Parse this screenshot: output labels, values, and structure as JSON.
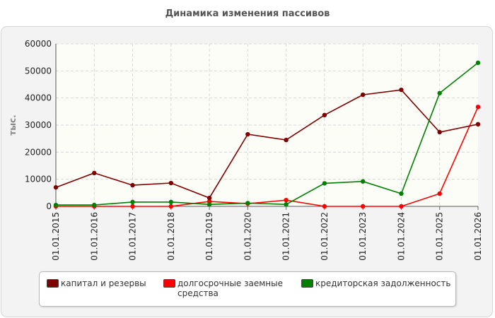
{
  "chart_data": {
    "type": "line",
    "title": "Динамика изменения пассивов",
    "ylabel": "тыс.",
    "xlabel": "",
    "categories": [
      "01.01.2015",
      "01.01.2016",
      "01.01.2017",
      "01.01.2018",
      "01.01.2019",
      "01.01.2020",
      "01.01.2021",
      "01.01.2022",
      "01.01.2023",
      "01.01.2024",
      "01.01.2025",
      "01.01.2026"
    ],
    "y_ticks": [
      "0",
      "10000",
      "20000",
      "30000",
      "40000",
      "50000",
      "60000"
    ],
    "ylim": [
      0,
      60000
    ],
    "grid": true,
    "legend_position": "bottom",
    "series": [
      {
        "name": "капитал и резервы",
        "color": "#800000",
        "values": [
          7000,
          12300,
          7800,
          8600,
          3100,
          26600,
          24500,
          33700,
          41200,
          43000,
          27400,
          30300
        ]
      },
      {
        "name": "долгосрочные заемные средства",
        "color": "#ff0000",
        "values": [
          0,
          0,
          0,
          0,
          1800,
          1000,
          2300,
          0,
          0,
          0,
          4700,
          36700
        ]
      },
      {
        "name": "кредиторская задолженность",
        "color": "#008000",
        "values": [
          500,
          500,
          1600,
          1600,
          700,
          1200,
          700,
          8500,
          9200,
          4700,
          41800,
          53000
        ]
      }
    ]
  }
}
